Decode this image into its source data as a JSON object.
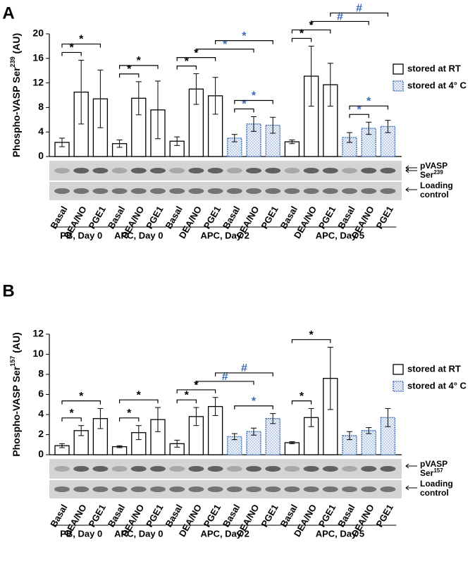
{
  "chart_data": [
    {
      "type": "bar",
      "panel": "A",
      "y_label": {
        "text": "Phospho-VASP Ser",
        "superscript": "239",
        "suffix": " (AU)"
      },
      "categories": [
        "Basal",
        "DEA/NO",
        "PGE1",
        "Basal",
        "DEA/NO",
        "PGE1",
        "Basal",
        "DEA/NO",
        "PGE1",
        "Basal",
        "DEA/NO",
        "PGE1",
        "Basal",
        "DEA/NO",
        "PGE1",
        "Basal",
        "DEA/NO",
        "PGE1"
      ],
      "groups": [
        {
          "label": "PB, Day 0",
          "from": 0,
          "to": 2
        },
        {
          "label": "APC, Day 0",
          "from": 3,
          "to": 5
        },
        {
          "label": "APC, Day 2",
          "from": 6,
          "to": 11
        },
        {
          "label": "APC, Day 5",
          "from": 12,
          "to": 17
        }
      ],
      "series": [
        {
          "name": "stored at RT",
          "color": "#000000",
          "values": [
            2.3,
            10.5,
            9.4,
            2.1,
            9.5,
            7.6,
            2.5,
            11.0,
            9.9,
            null,
            null,
            null,
            2.4,
            13.1,
            11.7,
            null,
            null,
            null
          ],
          "errors": [
            0.7,
            5.2,
            4.7,
            0.6,
            2.7,
            4.7,
            0.7,
            2.5,
            3.0,
            null,
            null,
            null,
            0.3,
            4.9,
            3.5,
            null,
            null,
            null
          ]
        },
        {
          "name": "stored at 4° C",
          "color": "#3b6cb7",
          "values": [
            null,
            null,
            null,
            null,
            null,
            null,
            null,
            null,
            null,
            3.0,
            5.3,
            5.1,
            null,
            null,
            null,
            3.1,
            4.6,
            4.9
          ],
          "errors": [
            null,
            null,
            null,
            null,
            null,
            null,
            null,
            null,
            null,
            0.6,
            1.2,
            1.3,
            null,
            null,
            null,
            0.8,
            1.0,
            1.0
          ]
        }
      ],
      "ylim": [
        0,
        20
      ],
      "yticks": [
        0,
        4,
        8,
        12,
        16,
        20
      ],
      "legend": "right",
      "blot_labels": [
        {
          "text": "pVASP"
        },
        {
          "text": "Ser",
          "superscript": "239"
        },
        {
          "text": "Loading"
        },
        {
          "text": "control"
        }
      ],
      "annotations": [
        {
          "from": 0,
          "to": 1,
          "symbol": "*",
          "color": "#000000"
        },
        {
          "from": 0,
          "to": 2,
          "symbol": "*",
          "color": "#000000"
        },
        {
          "from": 3,
          "to": 4,
          "symbol": "*",
          "color": "#000000"
        },
        {
          "from": 3,
          "to": 5,
          "symbol": "*",
          "color": "#000000"
        },
        {
          "from": 6,
          "to": 7,
          "symbol": "*",
          "color": "#000000"
        },
        {
          "from": 6,
          "to": 8,
          "symbol": "*",
          "color": "#000000"
        },
        {
          "from": 9,
          "to": 10,
          "symbol": "*",
          "color": "#3b6cb7"
        },
        {
          "from": 9,
          "to": 11,
          "symbol": "*",
          "color": "#3b6cb7"
        },
        {
          "from": 7,
          "to": 10,
          "symbol": "*",
          "color": "#3b6cb7"
        },
        {
          "from": 8,
          "to": 11,
          "symbol": "*",
          "color": "#3b6cb7"
        },
        {
          "from": 12,
          "to": 13,
          "symbol": "*",
          "color": "#000000"
        },
        {
          "from": 12,
          "to": 14,
          "symbol": "*",
          "color": "#000000"
        },
        {
          "from": 15,
          "to": 16,
          "symbol": "*",
          "color": "#3b6cb7"
        },
        {
          "from": 15,
          "to": 17,
          "symbol": "*",
          "color": "#3b6cb7"
        },
        {
          "from": 13,
          "to": 16,
          "symbol": "#",
          "color": "#3b6cb7"
        },
        {
          "from": 14,
          "to": 17,
          "symbol": "#",
          "color": "#3b6cb7"
        }
      ]
    },
    {
      "type": "bar",
      "panel": "B",
      "y_label": {
        "text": "Phospho-VASP Ser",
        "superscript": "157",
        "suffix": " (AU)"
      },
      "categories": [
        "Basal",
        "DEA/NO",
        "PGE1",
        "Basal",
        "DEA/NO",
        "PGE1",
        "Basal",
        "DEA/NO",
        "PGE1",
        "Basal",
        "DEA/NO",
        "PGE1",
        "Basal",
        "DEA/NO",
        "PGE1",
        "Basal",
        "DEA/NO",
        "PGE1"
      ],
      "groups": [
        {
          "label": "PB, Day 0",
          "from": 0,
          "to": 2
        },
        {
          "label": "APC, Day 0",
          "from": 3,
          "to": 5
        },
        {
          "label": "APC, Day 2",
          "from": 6,
          "to": 11
        },
        {
          "label": "APC, Day 5",
          "from": 12,
          "to": 17
        }
      ],
      "series": [
        {
          "name": "stored at RT",
          "color": "#000000",
          "values": [
            0.9,
            2.4,
            3.6,
            0.8,
            2.2,
            3.5,
            1.1,
            3.8,
            4.8,
            null,
            null,
            null,
            1.2,
            3.7,
            7.6,
            null,
            null,
            null
          ],
          "errors": [
            0.2,
            0.5,
            1.0,
            0.1,
            0.7,
            1.2,
            0.35,
            0.9,
            0.9,
            null,
            null,
            null,
            0.1,
            0.9,
            3.1,
            null,
            null,
            null
          ]
        },
        {
          "name": "stored at 4° C",
          "color": "#3b6cb7",
          "values": [
            null,
            null,
            null,
            null,
            null,
            null,
            null,
            null,
            null,
            1.8,
            2.3,
            3.6,
            null,
            null,
            null,
            1.9,
            2.4,
            3.7
          ],
          "errors": [
            null,
            null,
            null,
            null,
            null,
            null,
            null,
            null,
            null,
            0.3,
            0.35,
            0.5,
            null,
            null,
            null,
            0.4,
            0.3,
            0.9
          ]
        }
      ],
      "ylim": [
        0,
        12
      ],
      "yticks": [
        0,
        2,
        4,
        6,
        8,
        10,
        12
      ],
      "legend": "right",
      "blot_labels": [
        {
          "text": "pVASP"
        },
        {
          "text": "Ser",
          "superscript": "157"
        },
        {
          "text": "Loading"
        },
        {
          "text": "control"
        }
      ],
      "annotations": [
        {
          "from": 0,
          "to": 1,
          "symbol": "*",
          "color": "#000000"
        },
        {
          "from": 0,
          "to": 2,
          "symbol": "*",
          "color": "#000000"
        },
        {
          "from": 3,
          "to": 4,
          "symbol": "*",
          "color": "#000000"
        },
        {
          "from": 3,
          "to": 5,
          "symbol": "*",
          "color": "#000000"
        },
        {
          "from": 6,
          "to": 7,
          "symbol": "*",
          "color": "#000000"
        },
        {
          "from": 6,
          "to": 8,
          "symbol": "*",
          "color": "#000000"
        },
        {
          "from": 9,
          "to": 11,
          "symbol": "*",
          "color": "#3b6cb7"
        },
        {
          "from": 7,
          "to": 10,
          "symbol": "#",
          "color": "#3b6cb7"
        },
        {
          "from": 8,
          "to": 11,
          "symbol": "#",
          "color": "#3b6cb7"
        },
        {
          "from": 12,
          "to": 13,
          "symbol": "*",
          "color": "#000000"
        },
        {
          "from": 12,
          "to": 14,
          "symbol": "*",
          "color": "#000000"
        }
      ]
    }
  ]
}
